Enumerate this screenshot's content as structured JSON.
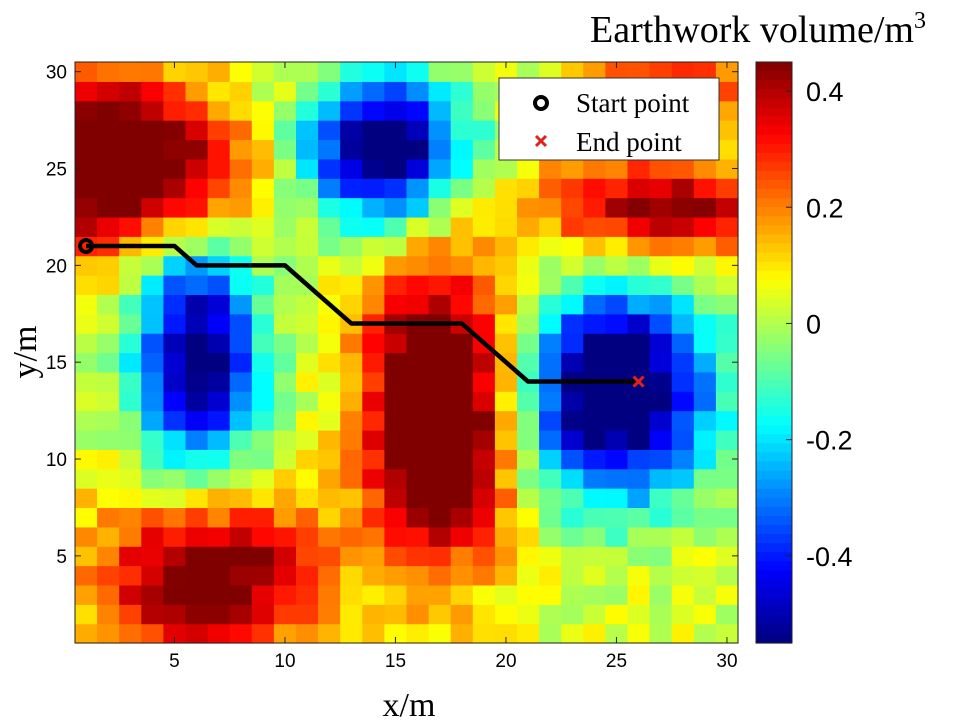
{
  "chart_data": {
    "type": "heatmap",
    "title": "",
    "xlabel": "x/m",
    "ylabel": "y/m",
    "xlim": [
      0.5,
      30.5
    ],
    "ylim": [
      0.5,
      30.5
    ],
    "xticks": [
      5,
      10,
      15,
      20,
      25,
      30
    ],
    "yticks": [
      5,
      10,
      15,
      20,
      25,
      30
    ],
    "colorbar": {
      "title": "Earthwork volume/m",
      "title_superscript": "3",
      "range": [
        -0.55,
        0.45
      ],
      "ticks": [
        0.4,
        0.2,
        0,
        -0.2,
        -0.4
      ],
      "tick_labels": [
        "0.4",
        "0.2",
        "0",
        "-0.2",
        "-0.4"
      ],
      "colormap": "jet"
    },
    "grid_resolution": "30 x 30 cells, 1 m each",
    "field_components": [
      {
        "description": "cut/fill hotspot upper-left",
        "center": [
          1.5,
          25.5
        ],
        "spread": [
          3.0,
          3.5
        ],
        "amplitude": 0.5
      },
      {
        "description": "hotspot upper-left lobe",
        "center": [
          6.0,
          24.5
        ],
        "spread": [
          2.5,
          2.5
        ],
        "amplitude": 0.3
      },
      {
        "description": "depression top-center",
        "center": [
          14.5,
          26.0
        ],
        "spread": [
          2.5,
          2.6
        ],
        "amplitude": -0.7
      },
      {
        "description": "hotspot upper-right",
        "center": [
          27.0,
          23.0
        ],
        "spread": [
          4.0,
          1.8
        ],
        "amplitude": 0.42
      },
      {
        "description": "hotspot top-right corner",
        "center": [
          27.5,
          29.5
        ],
        "spread": [
          2.5,
          1.5
        ],
        "amplitude": 0.3
      },
      {
        "description": "depression left-center",
        "center": [
          6.0,
          15.5
        ],
        "spread": [
          2.0,
          4.5
        ],
        "amplitude": -0.62
      },
      {
        "description": "hotspot center",
        "center": [
          17.0,
          12.5
        ],
        "spread": [
          2.3,
          5.2
        ],
        "amplitude": 0.68
      },
      {
        "description": "depression right-center",
        "center": [
          25.0,
          13.5
        ],
        "spread": [
          3.0,
          3.8
        ],
        "amplitude": -0.74
      },
      {
        "description": "hotspot lower-left",
        "center": [
          6.5,
          4.0
        ],
        "spread": [
          3.5,
          3.0
        ],
        "amplitude": 0.5
      }
    ],
    "series": [
      {
        "name": "path",
        "type": "line",
        "color": "#000000",
        "x": [
          1,
          5,
          6,
          10,
          13,
          18,
          21,
          26
        ],
        "y": [
          21,
          21,
          20,
          20,
          17,
          17,
          14,
          14
        ]
      },
      {
        "name": "Start point",
        "type": "marker",
        "marker": "circle",
        "color": "#000000",
        "x": [
          1
        ],
        "y": [
          21
        ]
      },
      {
        "name": "End point",
        "type": "marker",
        "marker": "x",
        "color": "#e0201b",
        "x": [
          26
        ],
        "y": [
          14
        ]
      }
    ],
    "legend": {
      "position": "top-right",
      "entries": [
        "Start point",
        "End point"
      ]
    }
  }
}
